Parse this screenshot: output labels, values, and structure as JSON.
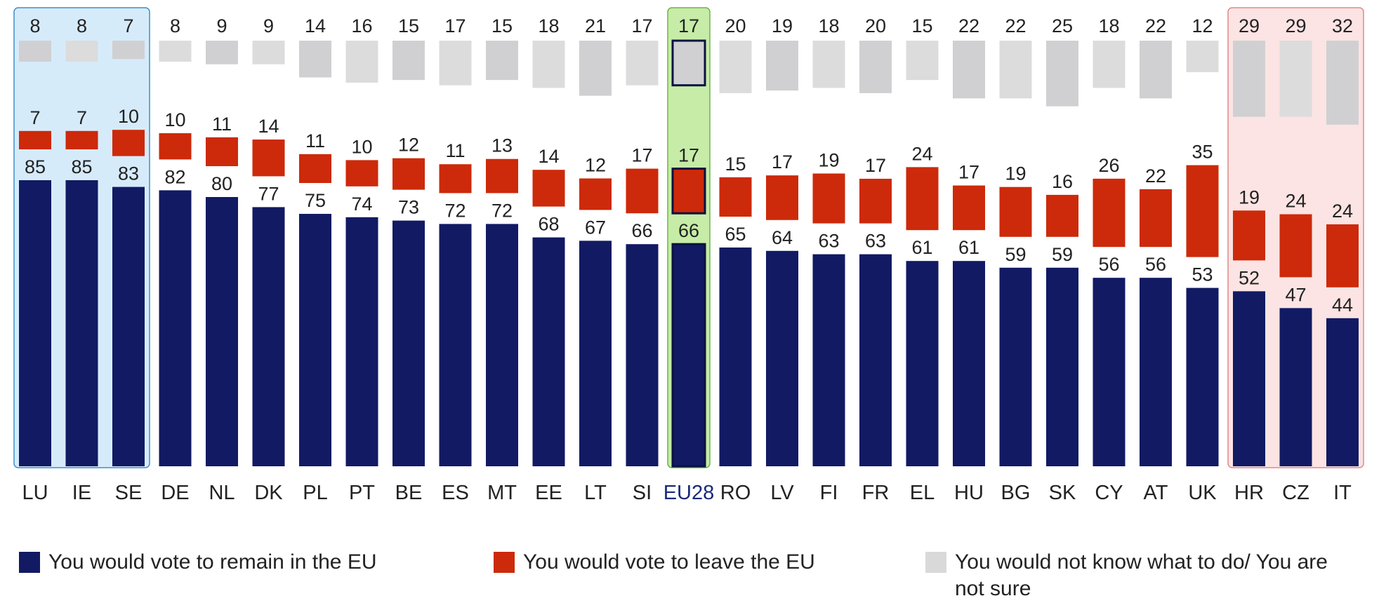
{
  "chart_data": {
    "type": "bar",
    "stacked": "floating",
    "categories": [
      "LU",
      "IE",
      "SE",
      "DE",
      "NL",
      "DK",
      "PL",
      "PT",
      "BE",
      "ES",
      "MT",
      "EE",
      "LT",
      "SI",
      "EU28",
      "RO",
      "LV",
      "FI",
      "FR",
      "EL",
      "HU",
      "BG",
      "SK",
      "CY",
      "AT",
      "UK",
      "HR",
      "CZ",
      "IT"
    ],
    "series": [
      {
        "name": "You would vote to remain in the EU",
        "color": "#111a63",
        "values": [
          85,
          85,
          83,
          82,
          80,
          77,
          75,
          74,
          73,
          72,
          72,
          68,
          67,
          66,
          66,
          65,
          64,
          63,
          63,
          61,
          61,
          59,
          59,
          56,
          56,
          53,
          52,
          47,
          44
        ]
      },
      {
        "name": "You would vote to leave the EU",
        "color": "#cc2a0a",
        "values": [
          7,
          7,
          10,
          10,
          11,
          14,
          11,
          10,
          12,
          11,
          13,
          14,
          12,
          17,
          17,
          15,
          17,
          19,
          17,
          24,
          17,
          19,
          16,
          26,
          22,
          35,
          19,
          24,
          24
        ]
      },
      {
        "name": "You would not know what to do/ You are not sure",
        "color": "#d9d9d9",
        "values": [
          8,
          8,
          7,
          8,
          9,
          9,
          14,
          16,
          15,
          17,
          15,
          18,
          21,
          17,
          17,
          20,
          19,
          18,
          20,
          15,
          22,
          22,
          25,
          18,
          22,
          12,
          29,
          29,
          32
        ]
      }
    ],
    "highlight_groups": [
      {
        "categories": [
          "LU",
          "IE",
          "SE"
        ],
        "color": "#d6ebfa",
        "border": "#3d8fc8"
      },
      {
        "categories": [
          "EU28"
        ],
        "color": "#c6eca7",
        "border": "#6bb34a"
      },
      {
        "categories": [
          "HR",
          "CZ",
          "IT"
        ],
        "color": "#fbe4e3",
        "border": "#e08a8a"
      }
    ],
    "ylim": [
      0,
      100
    ],
    "legend_position": "bottom",
    "grid": false
  },
  "legend": [
    {
      "label": "You would vote to remain in the EU",
      "color": "#111a63"
    },
    {
      "label": "You would vote to leave the EU",
      "color": "#cc2a0a"
    },
    {
      "label": "You would not know what to do/ You are not sure",
      "color": "#d9d9d9"
    }
  ]
}
